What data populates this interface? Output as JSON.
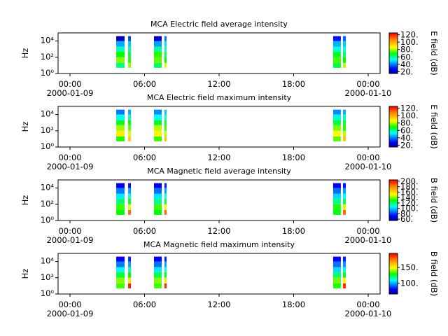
{
  "chart_data": [
    {
      "type": "spectrogram",
      "title": "MCA  Electric field average intensity",
      "ylabel": "Hz",
      "ylog": true,
      "ylim": [
        1,
        100000
      ],
      "yticks": [
        {
          "value": 1,
          "label": "10⁰"
        },
        {
          "value": 100,
          "label": "10²"
        },
        {
          "value": 10000,
          "label": "10⁴"
        }
      ],
      "xlim": [
        -0.96,
        24.96
      ],
      "xticks": [
        {
          "value": 0,
          "label": "00:00"
        },
        {
          "value": 6,
          "label": "06:00"
        },
        {
          "value": 12,
          "label": "12:00"
        },
        {
          "value": 18,
          "label": "18:00"
        },
        {
          "value": 24,
          "label": "00:00"
        }
      ],
      "xdates": [
        "2000-01-09",
        "2000-01-10"
      ],
      "ybins": [
        5,
        20,
        100,
        500,
        2000,
        10000,
        40000
      ],
      "bursts": [
        [
          3.72,
          4.39
        ],
        [
          4.68,
          4.9
        ],
        [
          6.76,
          7.38
        ],
        [
          7.6,
          7.77
        ],
        [
          21.18,
          21.8
        ],
        [
          21.97,
          22.2
        ]
      ],
      "values": [
        [
          62,
          78,
          70,
          58,
          45,
          20
        ],
        [
          80,
          72,
          66,
          60,
          48,
          35
        ],
        [
          64,
          76,
          72,
          60,
          44,
          22
        ],
        [
          84,
          70,
          64,
          58,
          50,
          40
        ],
        [
          66,
          74,
          68,
          56,
          46,
          30
        ],
        [
          82,
          70,
          62,
          56,
          48,
          38
        ]
      ],
      "colorbar_label": "E field (dB)",
      "clim": [
        15,
        125
      ],
      "cticks": [
        {
          "value": 20,
          "label": "20."
        },
        {
          "value": 40,
          "label": "40."
        },
        {
          "value": 60,
          "label": "60."
        },
        {
          "value": 80,
          "label": "80."
        },
        {
          "value": 100,
          "label": "100."
        },
        {
          "value": 120,
          "label": "120."
        }
      ]
    },
    {
      "type": "spectrogram",
      "title": "MCA  Electric field maximum intensity",
      "ylabel": "Hz",
      "ylog": true,
      "ylim": [
        1,
        100000
      ],
      "yticks": [
        {
          "value": 1,
          "label": "10⁰"
        },
        {
          "value": 100,
          "label": "10²"
        },
        {
          "value": 10000,
          "label": "10⁴"
        }
      ],
      "xlim": [
        -0.96,
        24.96
      ],
      "xticks": [
        {
          "value": 0,
          "label": "00:00"
        },
        {
          "value": 6,
          "label": "06:00"
        },
        {
          "value": 12,
          "label": "12:00"
        },
        {
          "value": 18,
          "label": "18:00"
        },
        {
          "value": 24,
          "label": "00:00"
        }
      ],
      "xdates": [
        "2000-01-09",
        "2000-01-10"
      ],
      "ybins": [
        5,
        20,
        100,
        500,
        2000,
        10000,
        40000
      ],
      "bursts": [
        [
          3.72,
          4.39
        ],
        [
          4.68,
          4.9
        ],
        [
          6.76,
          7.38
        ],
        [
          7.6,
          7.77
        ],
        [
          21.18,
          21.8
        ],
        [
          21.97,
          22.2
        ]
      ],
      "values": [
        [
          72,
          90,
          80,
          68,
          55,
          40
        ],
        [
          95,
          84,
          76,
          70,
          58,
          45
        ],
        [
          74,
          88,
          82,
          68,
          54,
          42
        ],
        [
          98,
          82,
          74,
          66,
          58,
          48
        ],
        [
          76,
          86,
          78,
          66,
          56,
          42
        ],
        [
          96,
          82,
          72,
          66,
          58,
          46
        ]
      ],
      "colorbar_label": "E field (dB)",
      "clim": [
        15,
        125
      ],
      "cticks": [
        {
          "value": 20,
          "label": "20."
        },
        {
          "value": 40,
          "label": "40."
        },
        {
          "value": 60,
          "label": "60."
        },
        {
          "value": 80,
          "label": "80."
        },
        {
          "value": 100,
          "label": "100."
        },
        {
          "value": 120,
          "label": "120."
        }
      ]
    },
    {
      "type": "spectrogram",
      "title": "MCA  Magnetic field average intensity",
      "ylabel": "Hz",
      "ylog": true,
      "ylim": [
        1,
        100000
      ],
      "yticks": [
        {
          "value": 1,
          "label": "10⁰"
        },
        {
          "value": 100,
          "label": "10²"
        },
        {
          "value": 10000,
          "label": "10⁴"
        }
      ],
      "xlim": [
        -0.96,
        24.96
      ],
      "xticks": [
        {
          "value": 0,
          "label": "00:00"
        },
        {
          "value": 6,
          "label": "06:00"
        },
        {
          "value": 12,
          "label": "12:00"
        },
        {
          "value": 18,
          "label": "18:00"
        },
        {
          "value": 24,
          "label": "00:00"
        }
      ],
      "xdates": [
        "2000-01-09",
        "2000-01-10"
      ],
      "ybins": [
        5,
        20,
        100,
        500,
        2000,
        10000,
        40000
      ],
      "bursts": [
        [
          3.72,
          4.39
        ],
        [
          4.68,
          4.9
        ],
        [
          6.76,
          7.38
        ],
        [
          7.6,
          7.77
        ],
        [
          21.18,
          21.8
        ],
        [
          21.97,
          22.2
        ]
      ],
      "values": [
        [
          130,
          135,
          120,
          105,
          90,
          70
        ],
        [
          185,
          150,
          125,
          110,
          95,
          75
        ],
        [
          130,
          135,
          118,
          104,
          88,
          70
        ],
        [
          188,
          150,
          124,
          108,
          95,
          76
        ],
        [
          128,
          132,
          118,
          102,
          88,
          72
        ],
        [
          186,
          148,
          122,
          108,
          94,
          76
        ]
      ],
      "colorbar_label": "B field (dB)",
      "clim": [
        55,
        205
      ],
      "cticks": [
        {
          "value": 60,
          "label": "60."
        },
        {
          "value": 80,
          "label": "80."
        },
        {
          "value": 100,
          "label": "100."
        },
        {
          "value": 120,
          "label": "120."
        },
        {
          "value": 140,
          "label": "140."
        },
        {
          "value": 160,
          "label": "160."
        },
        {
          "value": 180,
          "label": "180."
        },
        {
          "value": 200,
          "label": "200."
        }
      ]
    },
    {
      "type": "spectrogram",
      "title": "MCA  Magnetic field maximum intensity",
      "ylabel": "Hz",
      "ylog": true,
      "ylim": [
        1,
        100000
      ],
      "yticks": [
        {
          "value": 1,
          "label": "10⁰"
        },
        {
          "value": 100,
          "label": "10²"
        },
        {
          "value": 10000,
          "label": "10⁴"
        }
      ],
      "xlim": [
        -0.96,
        24.96
      ],
      "xticks": [
        {
          "value": 0,
          "label": "00:00"
        },
        {
          "value": 6,
          "label": "06:00"
        },
        {
          "value": 12,
          "label": "12:00"
        },
        {
          "value": 18,
          "label": "18:00"
        },
        {
          "value": 24,
          "label": "00:00"
        }
      ],
      "xdates": [
        "2000-01-09",
        "2000-01-10"
      ],
      "ybins": [
        5,
        20,
        100,
        500,
        2000,
        10000,
        40000
      ],
      "bursts": [
        [
          3.72,
          4.39
        ],
        [
          4.68,
          4.9
        ],
        [
          6.76,
          7.38
        ],
        [
          7.6,
          7.77
        ],
        [
          21.18,
          21.8
        ],
        [
          21.97,
          22.2
        ]
      ],
      "values": [
        [
          135,
          140,
          125,
          110,
          95,
          80
        ],
        [
          190,
          155,
          130,
          115,
          100,
          85
        ],
        [
          135,
          140,
          124,
          108,
          94,
          80
        ],
        [
          190,
          155,
          128,
          112,
          100,
          84
        ],
        [
          132,
          138,
          122,
          106,
          94,
          80
        ],
        [
          188,
          152,
          126,
          112,
          98,
          84
        ]
      ],
      "colorbar_label": "B field (dB)",
      "clim": [
        65,
        195
      ],
      "cticks": [
        {
          "value": 100,
          "label": "100."
        },
        {
          "value": 150,
          "label": "150."
        }
      ]
    }
  ]
}
